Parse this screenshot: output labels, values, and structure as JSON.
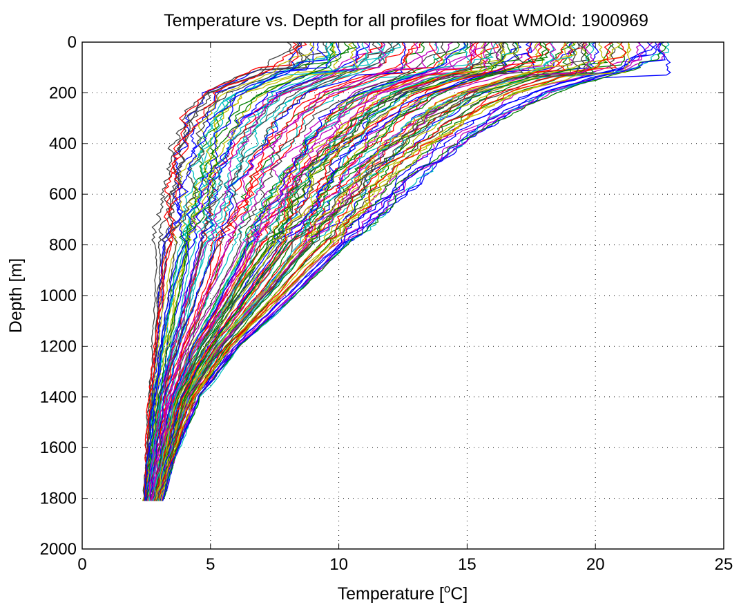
{
  "chart_data": {
    "type": "line",
    "title": "Temperature vs. Depth for all profiles for float WMOId: 1900969",
    "xlabel": "Temperature [",
    "xlabel_sup": "o",
    "xlabel_end": "C]",
    "ylabel": "Depth [m]",
    "xlim": [
      0,
      25
    ],
    "ylim": [
      0,
      2000
    ],
    "y_reversed": true,
    "grid": true,
    "xticks": [
      "0",
      "5",
      "10",
      "15",
      "20",
      "25"
    ],
    "yticks": [
      "0",
      "200",
      "400",
      "600",
      "800",
      "1000",
      "1200",
      "1400",
      "1600",
      "1800",
      "2000"
    ],
    "profile_count": 120,
    "depth_max": 1810,
    "colors": [
      "#0000ff",
      "#008000",
      "#ff0000",
      "#00bfbf",
      "#bf00bf",
      "#bfbf00",
      "#404040"
    ],
    "series_envelope": {
      "depths": [
        0,
        100,
        200,
        300,
        400,
        500,
        600,
        800,
        1000,
        1200,
        1400,
        1600,
        1810
      ],
      "cold_temp": [
        8.0,
        6.8,
        4.6,
        3.9,
        3.6,
        3.4,
        3.2,
        3.0,
        2.85,
        2.75,
        2.6,
        2.5,
        2.4
      ],
      "warm_temp": [
        23.0,
        22.0,
        18.5,
        16.5,
        15.0,
        13.6,
        12.6,
        10.5,
        8.4,
        6.2,
        4.6,
        3.8,
        3.1
      ]
    }
  }
}
